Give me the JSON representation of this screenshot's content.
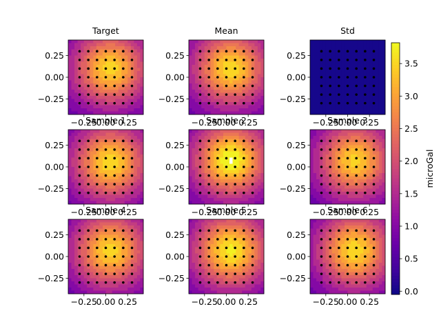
{
  "chart_data": {
    "type": "heatmap",
    "grid_layout": "3x3",
    "colormap": "plasma",
    "panels": [
      {
        "title": "Target",
        "peak": [
          0.05,
          0.1
        ],
        "peak_value": 3.5,
        "scale": 0.52,
        "mode": "field"
      },
      {
        "title": "Mean",
        "peak": [
          0.05,
          0.1
        ],
        "peak_value": 3.55,
        "scale": 0.52,
        "mode": "field"
      },
      {
        "title": "Std",
        "mode": "flat",
        "flat_value": 0.02
      },
      {
        "title": "Sample 1",
        "peak": [
          0.05,
          0.05
        ],
        "peak_value": 3.55,
        "scale": 0.52,
        "mode": "field"
      },
      {
        "title": "Sample 2",
        "peak": [
          0.05,
          0.08
        ],
        "peak_value": 3.9,
        "scale": 0.5,
        "mode": "field"
      },
      {
        "title": "Sample 3",
        "peak": [
          0.08,
          0.07
        ],
        "peak_value": 3.45,
        "scale": 0.52,
        "mode": "field"
      },
      {
        "title": "Sample 4",
        "peak": [
          0.05,
          0.07
        ],
        "peak_value": 3.5,
        "scale": 0.52,
        "mode": "field"
      },
      {
        "title": "Sample 5",
        "peak": [
          0.05,
          0.07
        ],
        "peak_value": 3.7,
        "scale": 0.52,
        "mode": "field"
      },
      {
        "title": "Sample 6",
        "peak": [
          0.08,
          0.07
        ],
        "peak_value": 3.55,
        "scale": 0.52,
        "mode": "field"
      }
    ],
    "xlim": [
      -0.43,
      0.43
    ],
    "ylim": [
      -0.43,
      0.43
    ],
    "x_ticks": [
      -0.25,
      0.0,
      0.25
    ],
    "x_tick_labels": [
      "−0.25",
      "0.00",
      "0.25"
    ],
    "y_ticks": [
      0.25,
      0.0,
      -0.25
    ],
    "y_tick_labels": [
      "0.25",
      "0.00",
      "−0.25"
    ],
    "stations": {
      "x": [
        -0.3,
        -0.2,
        -0.1,
        0.0,
        0.1,
        0.2,
        0.3
      ],
      "y": [
        0.3,
        0.2,
        0.1,
        0.0,
        -0.1,
        -0.2,
        -0.3
      ]
    },
    "colorbar": {
      "label": "microGal",
      "range": [
        -0.05,
        3.82
      ],
      "ticks": [
        0.0,
        0.5,
        1.0,
        1.5,
        2.0,
        2.5,
        3.0,
        3.5
      ],
      "tick_labels": [
        "0.0",
        "0.5",
        "1.0",
        "1.5",
        "2.0",
        "2.5",
        "3.0",
        "3.5"
      ]
    }
  }
}
